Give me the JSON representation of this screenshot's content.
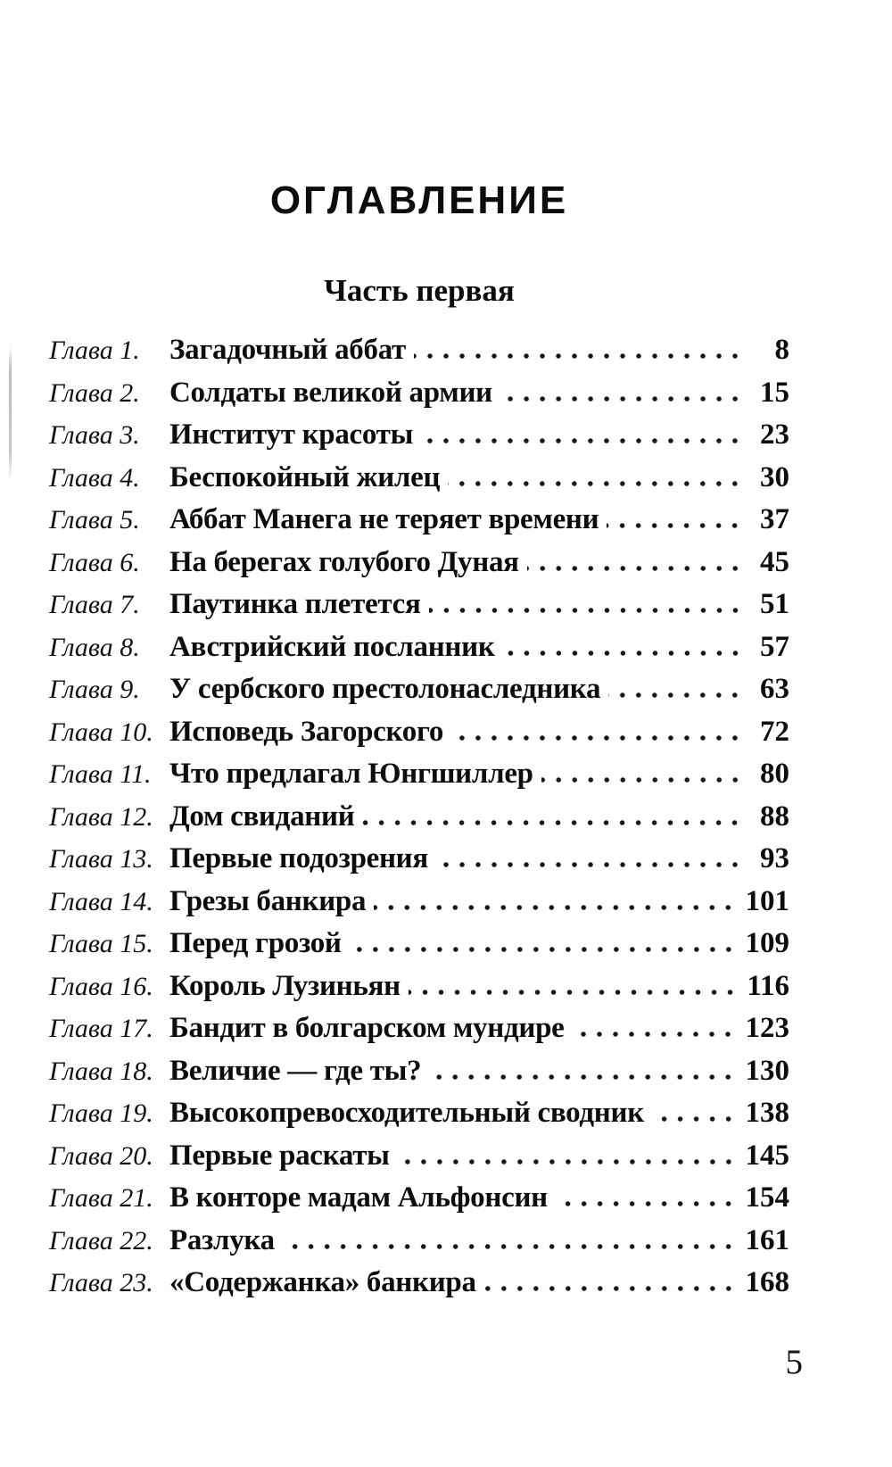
{
  "toc": {
    "title": "ОГЛАВЛЕНИЕ",
    "part_heading": "Часть первая",
    "folio_page_number": "5",
    "entries": [
      {
        "label": "Глава 1.",
        "title": "Загадочный аббат",
        "page": "8"
      },
      {
        "label": "Глава 2.",
        "title": "Солдаты великой армии",
        "page": "15"
      },
      {
        "label": "Глава 3.",
        "title": "Институт красоты",
        "page": "23"
      },
      {
        "label": "Глава 4.",
        "title": "Беспокойный жилец",
        "page": "30"
      },
      {
        "label": "Глава 5.",
        "title": "Аббат Манега не теряет времени",
        "page": "37"
      },
      {
        "label": "Глава 6.",
        "title": "На берегах голубого Дуная",
        "page": "45"
      },
      {
        "label": "Глава 7.",
        "title": "Паутинка плетется",
        "page": "51"
      },
      {
        "label": "Глава 8.",
        "title": "Австрийский посланник",
        "page": "57"
      },
      {
        "label": "Глава 9.",
        "title": "У сербского престолонаследника",
        "page": "63"
      },
      {
        "label": "Глава 10.",
        "title": "Исповедь Загорского",
        "page": "72"
      },
      {
        "label": "Глава 11.",
        "title": "Что предлагал Юнгшиллер",
        "page": "80"
      },
      {
        "label": "Глава 12.",
        "title": "Дом свиданий",
        "page": "88"
      },
      {
        "label": "Глава 13.",
        "title": "Первые подозрения",
        "page": "93"
      },
      {
        "label": "Глава 14.",
        "title": "Грезы банкира",
        "page": "101"
      },
      {
        "label": "Глава 15.",
        "title": "Перед грозой",
        "page": "109"
      },
      {
        "label": "Глава 16.",
        "title": "Король Лузиньян",
        "page": "116"
      },
      {
        "label": "Глава 17.",
        "title": "Бандит в болгарском мундире",
        "page": "123"
      },
      {
        "label": "Глава 18.",
        "title": "Величие — где ты?",
        "page": "130"
      },
      {
        "label": "Глава 19.",
        "title": "Высокопревосходительный сводник",
        "page": "138"
      },
      {
        "label": "Глава 20.",
        "title": "Первые раскаты",
        "page": "145"
      },
      {
        "label": "Глава 21.",
        "title": "В конторе мадам Альфонсин",
        "page": "154"
      },
      {
        "label": "Глава 22.",
        "title": "Разлука",
        "page": "161"
      },
      {
        "label": "Глава 23.",
        "title": "«Содержанка» банкира",
        "page": "168"
      }
    ]
  }
}
